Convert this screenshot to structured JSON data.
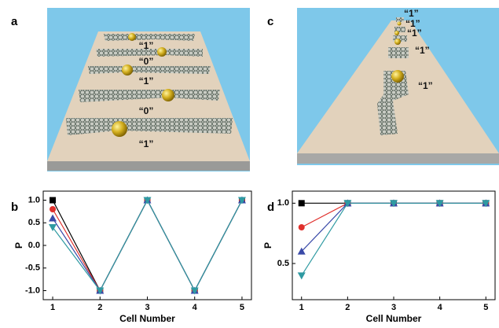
{
  "panel_labels": [
    "a",
    "b",
    "c",
    "d"
  ],
  "illustration_a": {
    "labels": [
      "“1”",
      "“0”",
      "“1”",
      "“0”",
      "“1”"
    ]
  },
  "illustration_c": {
    "labels": [
      "“1”",
      "“1”",
      "“1”",
      "“1”",
      "“1”"
    ]
  },
  "chart_data": [
    {
      "type": "line",
      "xlabel": "Cell Number",
      "ylabel": "P",
      "x": [
        1,
        2,
        3,
        4,
        5
      ],
      "xlim": [
        0.8,
        5.2
      ],
      "xticks": [
        1,
        2,
        3,
        4,
        5
      ],
      "ylim": [
        -1.2,
        1.2
      ],
      "yticks": [
        {
          "value": -1,
          "label": "-1.0"
        },
        {
          "value": -0.5,
          "label": "-0.5"
        },
        {
          "value": 0,
          "label": "0.0"
        },
        {
          "value": 0.5,
          "label": "0.5"
        },
        {
          "value": 1,
          "label": "1.0"
        }
      ],
      "series": [
        {
          "color": "#000000",
          "marker": "square",
          "values": [
            1,
            -1,
            1,
            -1,
            1
          ]
        },
        {
          "color": "#e0302c",
          "marker": "circle",
          "values": [
            0.8,
            -1,
            1,
            -1,
            1
          ]
        },
        {
          "color": "#3a4aa8",
          "marker": "triangle-up",
          "values": [
            0.6,
            -1,
            1,
            -1,
            1
          ]
        },
        {
          "color": "#2f9aa2",
          "marker": "triangle-down",
          "values": [
            0.4,
            -1,
            1,
            -1,
            1
          ]
        }
      ]
    },
    {
      "type": "line",
      "xlabel": "Cell Number",
      "ylabel": "P",
      "x": [
        1,
        2,
        3,
        4,
        5
      ],
      "xlim": [
        0.8,
        5.2
      ],
      "xticks": [
        1,
        2,
        3,
        4,
        5
      ],
      "ylim": [
        0.2,
        1.1
      ],
      "yticks": [
        {
          "value": 0.5,
          "label": "0.5"
        },
        {
          "value": 1,
          "label": "1.0"
        }
      ],
      "series": [
        {
          "color": "#000000",
          "marker": "square",
          "values": [
            1,
            1,
            1,
            1,
            1
          ]
        },
        {
          "color": "#e0302c",
          "marker": "circle",
          "values": [
            0.8,
            1,
            1,
            1,
            1
          ]
        },
        {
          "color": "#3a4aa8",
          "marker": "triangle-up",
          "values": [
            0.6,
            1,
            1,
            1,
            1
          ]
        },
        {
          "color": "#2f9aa2",
          "marker": "triangle-down",
          "values": [
            0.4,
            1,
            1,
            1,
            1
          ]
        }
      ]
    }
  ]
}
